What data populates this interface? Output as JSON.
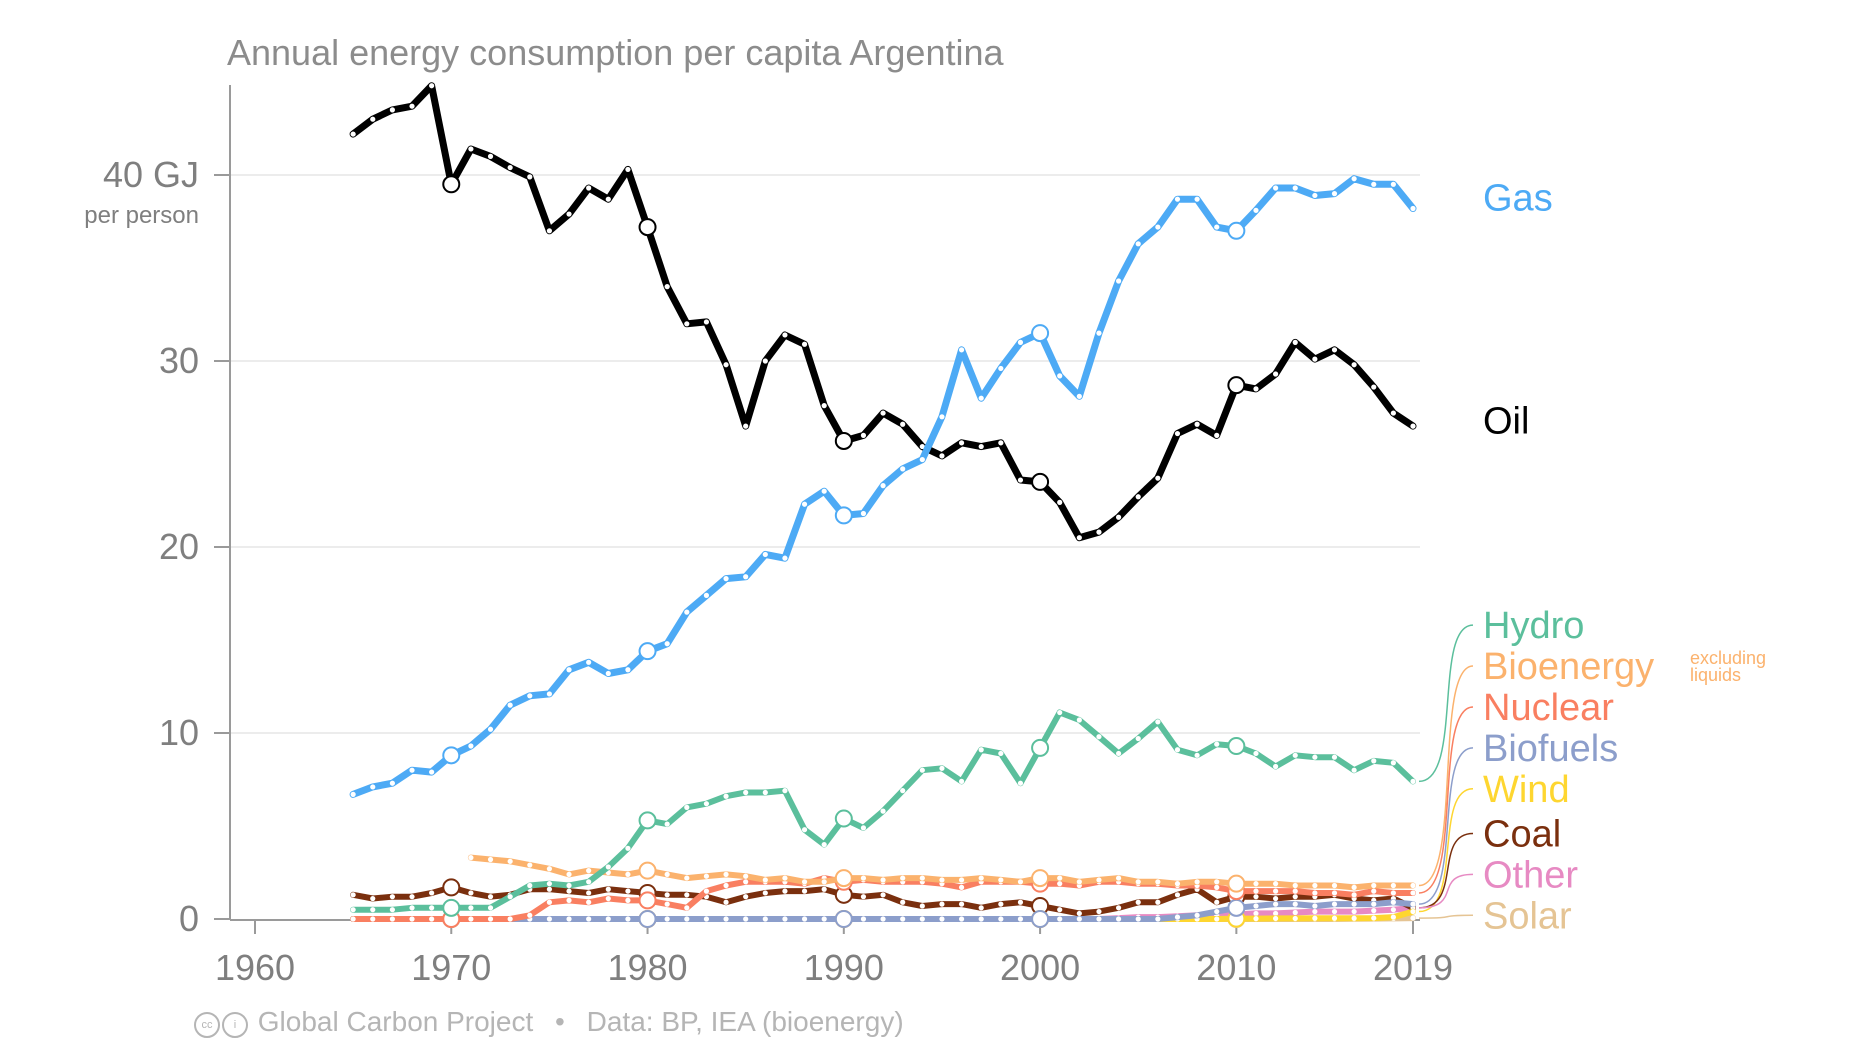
{
  "title": "Annual energy consumption per capita Argentina",
  "footer": {
    "cc_icon": "cc-icon",
    "by_icon": "by-icon",
    "source_org": "Global Carbon Project",
    "separator": "•",
    "source_data": "Data: BP, IEA (bioenergy)"
  },
  "chart_data": {
    "type": "line",
    "title": "Annual energy consumption per capita Argentina",
    "y_unit_label": "40 GJ",
    "y_unit_sublabel": "per person",
    "ylim": [
      0,
      45
    ],
    "xlim": [
      1958,
      2020
    ],
    "y_ticks": [
      {
        "value": 0,
        "label": "0"
      },
      {
        "value": 10,
        "label": "10"
      },
      {
        "value": 20,
        "label": "20"
      },
      {
        "value": 30,
        "label": "30"
      },
      {
        "value": 40,
        "label": "40 GJ"
      }
    ],
    "x_ticks": [
      {
        "value": 1960,
        "label": "1960"
      },
      {
        "value": 1970,
        "label": "1970"
      },
      {
        "value": 1980,
        "label": "1980"
      },
      {
        "value": 1990,
        "label": "1990"
      },
      {
        "value": 2000,
        "label": "2000"
      },
      {
        "value": 2010,
        "label": "2010"
      },
      {
        "value": 2019,
        "label": "2019"
      }
    ],
    "grid": true,
    "legend_placement": "right",
    "bioenergy_note": "excluding liquids",
    "series": [
      {
        "name": "Gas",
        "color": "#4daaf5",
        "label_value": 38.8,
        "start": 1965,
        "values": [
          6.7,
          7.1,
          7.3,
          8.0,
          7.9,
          8.8,
          9.3,
          10.2,
          11.5,
          12.0,
          12.1,
          13.4,
          13.8,
          13.2,
          13.4,
          14.4,
          14.8,
          16.5,
          17.4,
          18.3,
          18.4,
          19.6,
          19.4,
          22.3,
          23.0,
          21.7,
          21.8,
          23.3,
          24.2,
          24.7,
          27.0,
          30.6,
          28.0,
          29.6,
          31.0,
          31.5,
          29.2,
          28.1,
          31.5,
          34.3,
          36.3,
          37.2,
          38.7,
          38.7,
          37.2,
          37.0,
          38.1,
          39.3,
          39.3,
          38.9,
          39.0,
          39.8,
          39.5,
          39.5,
          38.2
        ]
      },
      {
        "name": "Oil",
        "color": "#000000",
        "label_value": 26.8,
        "start": 1965,
        "values": [
          42.2,
          43.0,
          43.5,
          43.7,
          44.8,
          39.5,
          41.4,
          41.0,
          40.4,
          39.9,
          37.0,
          37.9,
          39.3,
          38.7,
          40.3,
          37.2,
          34.0,
          32.0,
          32.1,
          29.8,
          26.5,
          30.0,
          31.4,
          30.9,
          27.6,
          25.7,
          26.0,
          27.2,
          26.6,
          25.4,
          24.9,
          25.6,
          25.4,
          25.6,
          23.6,
          23.5,
          22.4,
          20.5,
          20.8,
          21.6,
          22.7,
          23.7,
          26.1,
          26.6,
          26.0,
          28.7,
          28.5,
          29.3,
          31.0,
          30.1,
          30.6,
          29.8,
          28.6,
          27.2,
          26.5
        ]
      },
      {
        "name": "Hydro",
        "color": "#5bbf9c",
        "label_value": 15.8,
        "start": 1965,
        "values": [
          0.5,
          0.5,
          0.5,
          0.6,
          0.6,
          0.6,
          0.6,
          0.6,
          1.2,
          1.8,
          1.9,
          1.8,
          2.0,
          2.8,
          3.8,
          5.3,
          5.1,
          6.0,
          6.2,
          6.6,
          6.8,
          6.8,
          6.9,
          4.8,
          4.0,
          5.4,
          4.9,
          5.8,
          6.9,
          8.0,
          8.1,
          7.4,
          9.1,
          8.9,
          7.3,
          9.2,
          11.1,
          10.7,
          9.8,
          8.9,
          9.7,
          10.6,
          9.1,
          8.8,
          9.4,
          9.3,
          8.9,
          8.2,
          8.8,
          8.7,
          8.7,
          8.0,
          8.5,
          8.4,
          7.4
        ]
      },
      {
        "name": "Bioenergy",
        "color": "#fbb26d",
        "label_value": 13.6,
        "start": 1971,
        "values": [
          3.3,
          3.2,
          3.1,
          2.9,
          2.7,
          2.4,
          2.6,
          2.5,
          2.4,
          2.6,
          2.4,
          2.2,
          2.3,
          2.4,
          2.3,
          2.1,
          2.2,
          2.0,
          2.0,
          2.2,
          2.2,
          2.1,
          2.2,
          2.2,
          2.1,
          2.1,
          2.2,
          2.1,
          2.0,
          2.2,
          2.2,
          2.0,
          2.1,
          2.2,
          2.0,
          2.0,
          1.9,
          2.0,
          2.0,
          1.9,
          1.9,
          1.9,
          1.8,
          1.8,
          1.8,
          1.7,
          1.8,
          1.8,
          1.8
        ]
      },
      {
        "name": "Nuclear",
        "color": "#f97f61",
        "label_value": 11.4,
        "start": 1965,
        "values": [
          0,
          0,
          0,
          0,
          0,
          0,
          0,
          0,
          0,
          0.2,
          0.9,
          1.0,
          0.9,
          1.1,
          1.0,
          1.0,
          0.8,
          0.6,
          1.5,
          1.8,
          2.0,
          2.0,
          2.0,
          1.9,
          2.2,
          2.0,
          2.1,
          2.0,
          2.0,
          2.0,
          1.9,
          1.7,
          2.0,
          2.0,
          2.0,
          1.9,
          1.9,
          1.8,
          2.0,
          2.0,
          1.9,
          1.9,
          1.8,
          1.8,
          1.7,
          1.5,
          1.5,
          1.5,
          1.5,
          1.4,
          1.4,
          1.3,
          1.5,
          1.4,
          1.4
        ]
      },
      {
        "name": "Biofuels",
        "color": "#8c9ecb",
        "label_value": 9.2,
        "start": 1965,
        "values": [
          0,
          0,
          0,
          0,
          0,
          0,
          0,
          0,
          0,
          0,
          0,
          0,
          0,
          0,
          0,
          0,
          0,
          0,
          0,
          0,
          0,
          0,
          0,
          0,
          0,
          0,
          0,
          0,
          0,
          0,
          0,
          0,
          0,
          0,
          0,
          0,
          0,
          0,
          0,
          0,
          0,
          0,
          0.1,
          0.2,
          0.4,
          0.6,
          0.7,
          0.8,
          0.8,
          0.7,
          0.8,
          0.8,
          0.8,
          0.9,
          0.8
        ]
      },
      {
        "name": "Wind",
        "color": "#fed630",
        "label_value": 7.0,
        "start": 1965,
        "values": [
          0,
          0,
          0,
          0,
          0,
          0,
          0,
          0,
          0,
          0,
          0,
          0,
          0,
          0,
          0,
          0,
          0,
          0,
          0,
          0,
          0,
          0,
          0,
          0,
          0,
          0,
          0,
          0,
          0,
          0,
          0,
          0,
          0,
          0,
          0,
          0,
          0,
          0,
          0,
          0,
          0,
          0,
          0,
          0,
          0,
          0.02,
          0.02,
          0.03,
          0.03,
          0.04,
          0.04,
          0.04,
          0.05,
          0.1,
          0.4
        ]
      },
      {
        "name": "Coal",
        "color": "#7a2f0e",
        "label_value": 4.6,
        "start": 1965,
        "values": [
          1.3,
          1.1,
          1.2,
          1.2,
          1.4,
          1.7,
          1.4,
          1.2,
          1.3,
          1.6,
          1.6,
          1.5,
          1.4,
          1.6,
          1.5,
          1.4,
          1.3,
          1.3,
          1.2,
          0.9,
          1.2,
          1.4,
          1.5,
          1.5,
          1.6,
          1.3,
          1.2,
          1.3,
          0.9,
          0.7,
          0.8,
          0.8,
          0.6,
          0.8,
          0.9,
          0.7,
          0.5,
          0.3,
          0.4,
          0.6,
          0.9,
          0.9,
          1.3,
          1.6,
          0.9,
          1.2,
          1.2,
          1.1,
          1.2,
          1.2,
          1.3,
          1.1,
          1.0,
          1.1,
          0.6
        ]
      },
      {
        "name": "Other",
        "color": "#e78ac3",
        "label_value": 2.4,
        "start": 1965,
        "values": [
          0,
          0,
          0,
          0,
          0,
          0,
          0,
          0,
          0,
          0,
          0,
          0,
          0,
          0,
          0,
          0,
          0,
          0,
          0,
          0,
          0,
          0,
          0,
          0,
          0,
          0,
          0,
          0,
          0,
          0,
          0,
          0,
          0,
          0,
          0,
          0,
          0,
          0,
          0,
          0.05,
          0.1,
          0.1,
          0.15,
          0.2,
          0.2,
          0.25,
          0.3,
          0.3,
          0.35,
          0.4,
          0.4,
          0.4,
          0.45,
          0.5,
          0.6
        ]
      },
      {
        "name": "Solar",
        "color": "#e5c494",
        "label_value": 0.2,
        "start": 1965,
        "values": [
          0,
          0,
          0,
          0,
          0,
          0,
          0,
          0,
          0,
          0,
          0,
          0,
          0,
          0,
          0,
          0,
          0,
          0,
          0,
          0,
          0,
          0,
          0,
          0,
          0,
          0,
          0,
          0,
          0,
          0,
          0,
          0,
          0,
          0,
          0,
          0,
          0,
          0,
          0,
          0,
          0,
          0,
          0,
          0,
          0,
          0,
          0,
          0,
          0,
          0,
          0,
          0.01,
          0.02,
          0.03,
          0.05
        ]
      }
    ]
  }
}
